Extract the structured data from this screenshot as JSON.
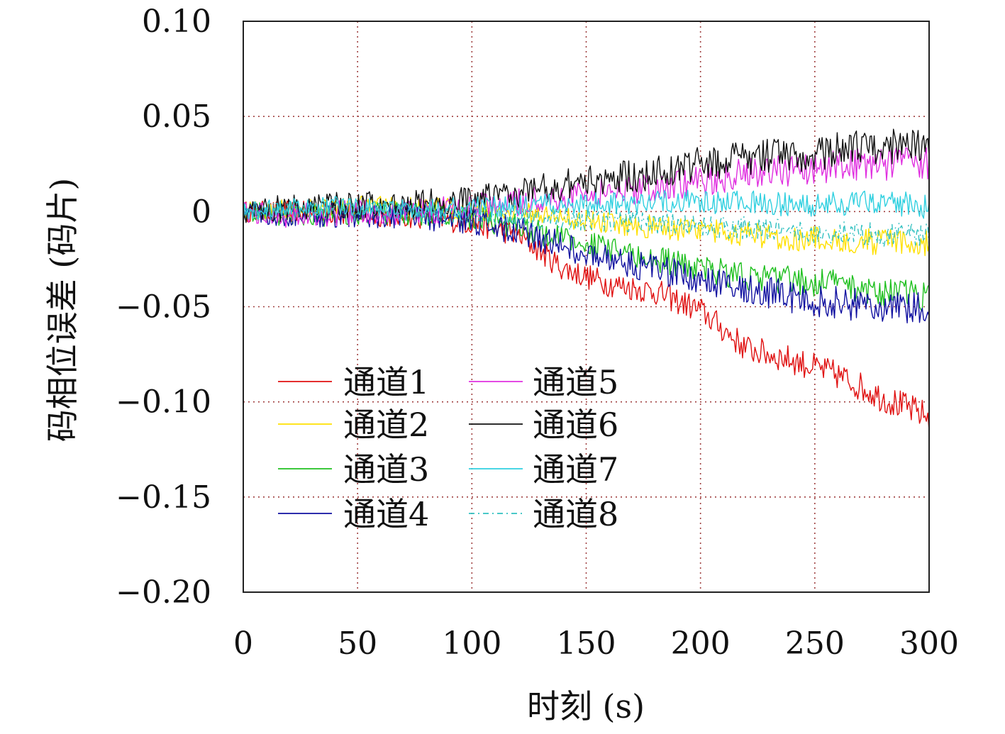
{
  "chart_data": {
    "type": "line",
    "title": "",
    "xlabel": "时刻 (s)",
    "ylabel": "码相位误差 (码片)",
    "xlim": [
      0,
      300
    ],
    "ylim": [
      -0.2,
      0.1
    ],
    "x_ticks": [
      0,
      50,
      100,
      150,
      200,
      250,
      300
    ],
    "x_tick_labels": [
      "0",
      "50",
      "100",
      "150",
      "200",
      "250",
      "300"
    ],
    "y_ticks": [
      0.1,
      0.05,
      0,
      -0.05,
      -0.1,
      -0.15,
      -0.2
    ],
    "y_tick_labels": [
      "0.10",
      "0.05",
      "0",
      "−0.05",
      "−0.10",
      "−0.15",
      "−0.20"
    ],
    "grid": true,
    "legend_position": "lower-left",
    "x": [
      0,
      20,
      40,
      60,
      80,
      100,
      120,
      140,
      160,
      180,
      200,
      220,
      240,
      260,
      280,
      300
    ],
    "series": [
      {
        "name": "通道1",
        "color": "#e01010",
        "dash": "",
        "amp": 0.008,
        "values": [
          0,
          0,
          -0.001,
          -0.002,
          -0.003,
          -0.006,
          -0.012,
          -0.03,
          -0.038,
          -0.042,
          -0.052,
          -0.072,
          -0.078,
          -0.086,
          -0.098,
          -0.108
        ]
      },
      {
        "name": "通道2",
        "color": "#ffe000",
        "dash": "",
        "amp": 0.007,
        "values": [
          0,
          0.002,
          0.003,
          0.003,
          0.002,
          0.001,
          0,
          -0.003,
          -0.006,
          -0.008,
          -0.01,
          -0.012,
          -0.014,
          -0.015,
          -0.016,
          -0.017
        ]
      },
      {
        "name": "通道3",
        "color": "#20c020",
        "dash": "",
        "amp": 0.008,
        "values": [
          0,
          -0.002,
          -0.002,
          -0.001,
          -0.002,
          -0.003,
          -0.008,
          -0.014,
          -0.02,
          -0.025,
          -0.03,
          -0.034,
          -0.036,
          -0.038,
          -0.042,
          -0.045
        ]
      },
      {
        "name": "通道4",
        "color": "#1010a0",
        "dash": "",
        "amp": 0.009,
        "values": [
          0,
          -0.002,
          -0.002,
          -0.003,
          -0.003,
          -0.005,
          -0.01,
          -0.018,
          -0.025,
          -0.03,
          -0.036,
          -0.04,
          -0.045,
          -0.048,
          -0.05,
          -0.052
        ]
      },
      {
        "name": "通道5",
        "color": "#e030e0",
        "dash": "",
        "amp": 0.009,
        "values": [
          0,
          -0.002,
          -0.001,
          0,
          0,
          0.002,
          0.005,
          0.008,
          0.01,
          0.013,
          0.016,
          0.02,
          0.022,
          0.024,
          0.025,
          0.025
        ]
      },
      {
        "name": "通道6",
        "color": "#111111",
        "dash": "",
        "amp": 0.01,
        "values": [
          0,
          0.002,
          0.003,
          0.003,
          0.004,
          0.006,
          0.01,
          0.014,
          0.017,
          0.02,
          0.025,
          0.028,
          0.03,
          0.032,
          0.034,
          0.035
        ]
      },
      {
        "name": "通道7",
        "color": "#30d0e0",
        "dash": "",
        "amp": 0.007,
        "values": [
          0,
          0.002,
          0.003,
          0.002,
          0.002,
          0.002,
          0.003,
          0.004,
          0.004,
          0.005,
          0.005,
          0.005,
          0.004,
          0.004,
          0.004,
          0.003
        ]
      },
      {
        "name": "通道8",
        "color": "#30c0c0",
        "dash": "8 5 2 5",
        "amp": 0.007,
        "values": [
          0,
          0.001,
          0.001,
          0,
          -0.001,
          -0.002,
          -0.003,
          -0.004,
          -0.005,
          -0.006,
          -0.008,
          -0.009,
          -0.01,
          -0.011,
          -0.012,
          -0.013
        ]
      }
    ]
  }
}
